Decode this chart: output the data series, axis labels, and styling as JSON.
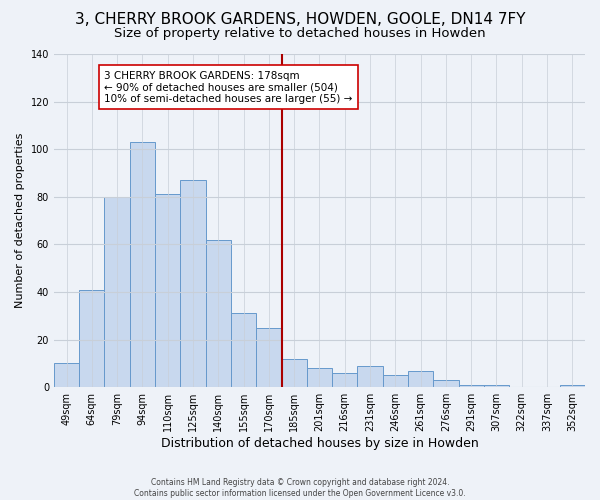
{
  "title": "3, CHERRY BROOK GARDENS, HOWDEN, GOOLE, DN14 7FY",
  "subtitle": "Size of property relative to detached houses in Howden",
  "xlabel": "Distribution of detached houses by size in Howden",
  "ylabel": "Number of detached properties",
  "bar_labels": [
    "49sqm",
    "64sqm",
    "79sqm",
    "94sqm",
    "110sqm",
    "125sqm",
    "140sqm",
    "155sqm",
    "170sqm",
    "185sqm",
    "201sqm",
    "216sqm",
    "231sqm",
    "246sqm",
    "261sqm",
    "276sqm",
    "291sqm",
    "307sqm",
    "322sqm",
    "337sqm",
    "352sqm"
  ],
  "bar_values": [
    10,
    41,
    80,
    103,
    81,
    87,
    62,
    31,
    25,
    12,
    8,
    6,
    9,
    5,
    7,
    3,
    1,
    1,
    0,
    0,
    1
  ],
  "bar_color": "#c8d8ee",
  "bar_edge_color": "#6699cc",
  "vline_color": "#aa0000",
  "annotation_title": "3 CHERRY BROOK GARDENS: 178sqm",
  "annotation_line1": "← 90% of detached houses are smaller (504)",
  "annotation_line2": "10% of semi-detached houses are larger (55) →",
  "annotation_box_edge": "#cc0000",
  "ylim": [
    0,
    140
  ],
  "yticks": [
    0,
    20,
    40,
    60,
    80,
    100,
    120,
    140
  ],
  "footer1": "Contains HM Land Registry data © Crown copyright and database right 2024.",
  "footer2": "Contains public sector information licensed under the Open Government Licence v3.0.",
  "background_color": "#eef2f8",
  "grid_color": "#c8cfd8",
  "title_fontsize": 11,
  "subtitle_fontsize": 9.5,
  "xlabel_fontsize": 9,
  "ylabel_fontsize": 8,
  "tick_fontsize": 7,
  "annotation_fontsize": 7.5
}
